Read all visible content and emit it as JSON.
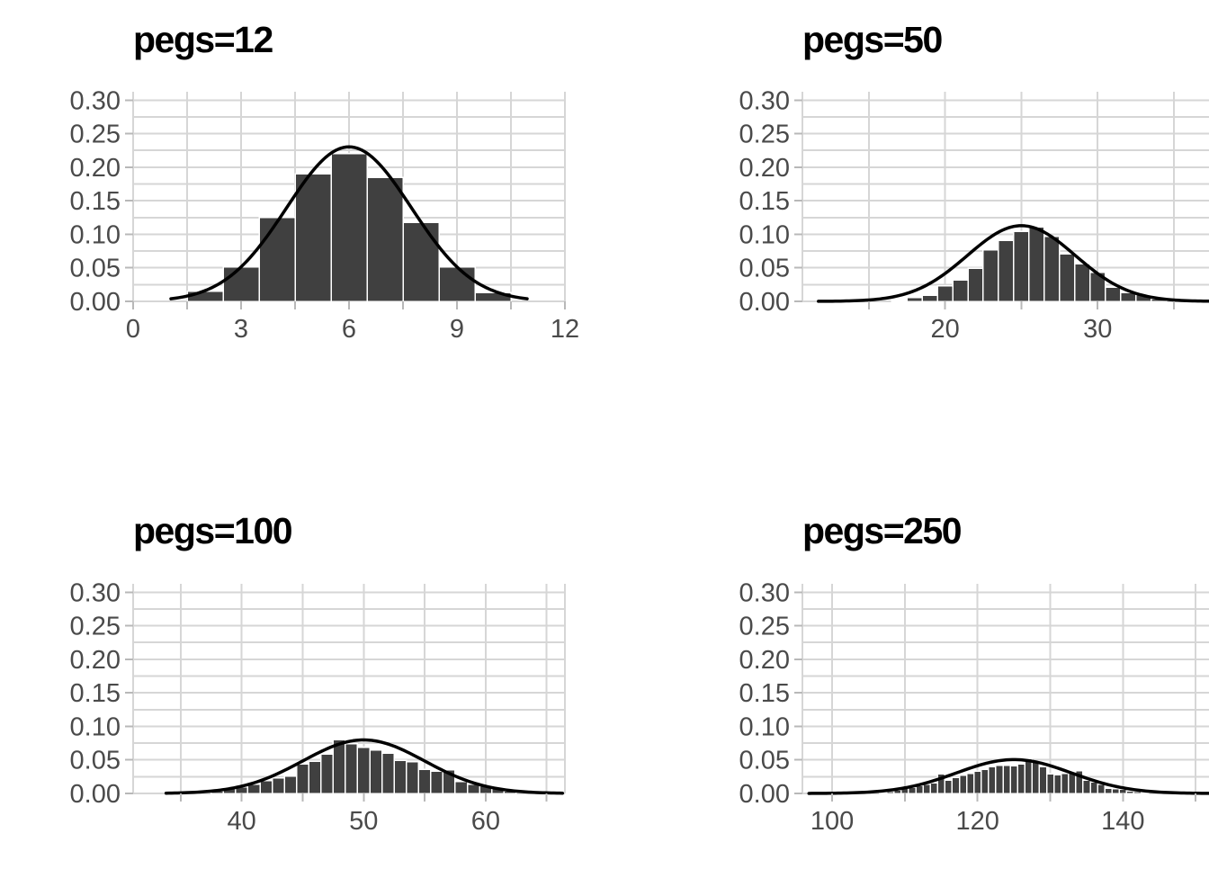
{
  "figure": {
    "kind": "histogram-grid",
    "rows": 2,
    "cols": 2,
    "colors": {
      "background": "#ffffff",
      "bar_fill": "#404040",
      "bar_stroke": "#ffffff",
      "curve": "#000000",
      "gridline": "#d6d6d6",
      "tick": "#b8b8b8",
      "axis_text": "#4a4a4a",
      "title_text": "#000000"
    },
    "y_axis": {
      "max": 0.3125,
      "minor_step": 0.025,
      "tick_values": [
        0,
        0.05,
        0.1,
        0.15,
        0.2,
        0.25,
        0.3
      ],
      "tick_labels": [
        "0.00",
        "0.05",
        "0.10",
        "0.15",
        "0.20",
        "0.25",
        "0.30"
      ]
    }
  },
  "chart_data": [
    {
      "type": "bar",
      "title": "pegs=12",
      "xlabel": "",
      "ylabel": "",
      "grid": true,
      "legend": false,
      "xlim": [
        0,
        12
      ],
      "ylim": [
        0,
        0.3125
      ],
      "bar_width": 1,
      "x": [
        2,
        3,
        4,
        5,
        6,
        7,
        8,
        9,
        10
      ],
      "values": [
        0.015,
        0.051,
        0.125,
        0.19,
        0.22,
        0.185,
        0.118,
        0.051,
        0.013
      ],
      "x_breaks": [
        0,
        1.5,
        3,
        4.5,
        6,
        7.5,
        9,
        10.5,
        12
      ],
      "x_tick_labels": [
        {
          "value": 0,
          "label": "0"
        },
        {
          "value": 3,
          "label": "3"
        },
        {
          "value": 6,
          "label": "6"
        },
        {
          "value": 9,
          "label": "9"
        },
        {
          "value": 12,
          "label": "12"
        }
      ],
      "curve": {
        "type": "normal_pdf",
        "mean": 6,
        "sd": 1.7321,
        "from": 1.05,
        "to": 10.95,
        "peak": 0.2303
      }
    },
    {
      "type": "bar",
      "title": "pegs=50",
      "xlabel": "",
      "ylabel": "",
      "grid": true,
      "legend": false,
      "xlim": [
        10.65,
        38.95
      ],
      "ylim": [
        0,
        0.3125
      ],
      "bar_width": 1,
      "x": [
        17,
        18,
        19,
        20,
        21,
        22,
        23,
        24,
        25,
        26,
        27,
        28,
        29,
        30,
        31,
        32,
        33,
        34
      ],
      "values": [
        0.002,
        0.006,
        0.009,
        0.023,
        0.032,
        0.049,
        0.077,
        0.091,
        0.104,
        0.111,
        0.097,
        0.071,
        0.056,
        0.043,
        0.021,
        0.013,
        0.01,
        0.004
      ],
      "x_breaks": [
        15,
        20,
        25,
        30,
        35
      ],
      "x_tick_labels": [
        {
          "value": 20,
          "label": "20"
        },
        {
          "value": 30,
          "label": "30"
        }
      ],
      "curve": {
        "type": "normal_pdf",
        "mean": 25,
        "sd": 3.5355,
        "from": 11.7,
        "to": 37.3,
        "peak": 0.1128
      }
    },
    {
      "type": "bar",
      "title": "pegs=100",
      "xlabel": "",
      "ylabel": "",
      "grid": true,
      "legend": false,
      "xlim": [
        31.1,
        66.5
      ],
      "ylim": [
        0,
        0.3125
      ],
      "bar_width": 1,
      "x": [
        38,
        39,
        40,
        41,
        42,
        43,
        44,
        45,
        46,
        47,
        48,
        49,
        50,
        51,
        52,
        53,
        54,
        55,
        56,
        57,
        58,
        59,
        60,
        61,
        62
      ],
      "values": [
        0.004,
        0.007,
        0.01,
        0.014,
        0.019,
        0.023,
        0.026,
        0.044,
        0.048,
        0.059,
        0.08,
        0.074,
        0.069,
        0.065,
        0.06,
        0.049,
        0.047,
        0.036,
        0.033,
        0.035,
        0.018,
        0.014,
        0.011,
        0.007,
        0.004
      ],
      "x_breaks": [
        35,
        40,
        45,
        50,
        55,
        60,
        65
      ],
      "x_tick_labels": [
        {
          "value": 40,
          "label": "40"
        },
        {
          "value": 50,
          "label": "50"
        },
        {
          "value": 60,
          "label": "60"
        }
      ],
      "curve": {
        "type": "normal_pdf",
        "mean": 50,
        "sd": 5,
        "from": 33.8,
        "to": 66.3,
        "peak": 0.0798
      }
    },
    {
      "type": "bar",
      "title": "pegs=250",
      "xlabel": "",
      "ylabel": "",
      "grid": true,
      "legend": false,
      "xlim": [
        95.9,
        155.3
      ],
      "ylim": [
        0,
        0.3125
      ],
      "bar_width": 1,
      "x": [
        107,
        108,
        109,
        110,
        111,
        112,
        113,
        114,
        115,
        116,
        117,
        118,
        119,
        120,
        121,
        122,
        123,
        124,
        125,
        126,
        127,
        128,
        129,
        130,
        131,
        132,
        133,
        134,
        135,
        136,
        137,
        138,
        139,
        140,
        141,
        142,
        143
      ],
      "values": [
        0.002,
        0.003,
        0.005,
        0.008,
        0.009,
        0.012,
        0.014,
        0.016,
        0.029,
        0.02,
        0.024,
        0.027,
        0.03,
        0.033,
        0.036,
        0.04,
        0.042,
        0.042,
        0.041,
        0.044,
        0.052,
        0.047,
        0.04,
        0.029,
        0.028,
        0.03,
        0.031,
        0.034,
        0.02,
        0.017,
        0.014,
        0.008,
        0.007,
        0.0065,
        0.004,
        0.003,
        0.002
      ],
      "x_breaks": [
        100,
        110,
        120,
        130,
        140,
        150
      ],
      "x_tick_labels": [
        {
          "value": 100,
          "label": "100"
        },
        {
          "value": 120,
          "label": "120"
        },
        {
          "value": 140,
          "label": "140"
        }
      ],
      "curve": {
        "type": "normal_pdf",
        "mean": 125,
        "sd": 7.9057,
        "from": 96.8,
        "to": 152.8,
        "peak": 0.0505
      }
    }
  ]
}
